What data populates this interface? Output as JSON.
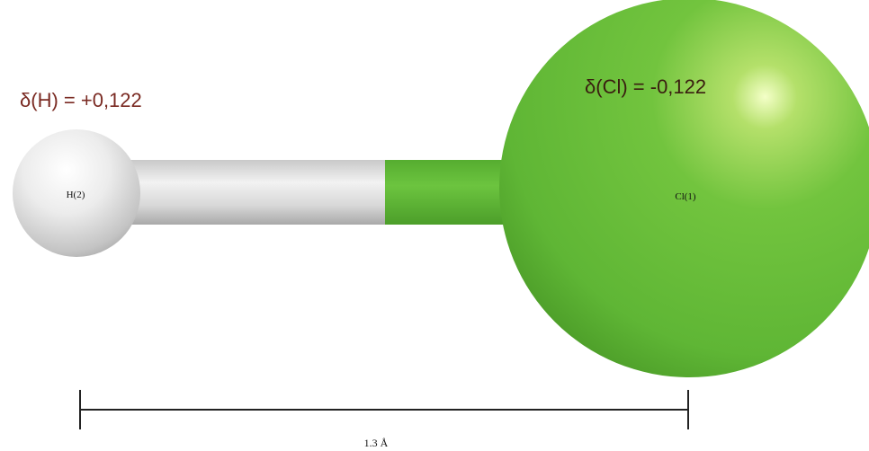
{
  "atoms": [
    {
      "id": "H",
      "label": "H(2)",
      "charge_label": "δ(H) = +0,122",
      "color": "#e8e8e8"
    },
    {
      "id": "Cl",
      "label": "Cl(1)",
      "charge_label": "δ(Cl) = -0,122",
      "color": "#67be3c"
    }
  ],
  "scale_bar": {
    "label": "1.3 Å"
  },
  "colors": {
    "h_charge_text": "#7a2a22",
    "cl_charge_text": "#3a1e10",
    "bond_h": "#d6d6d6",
    "bond_cl": "#5cb536",
    "scale_line": "#222222"
  }
}
